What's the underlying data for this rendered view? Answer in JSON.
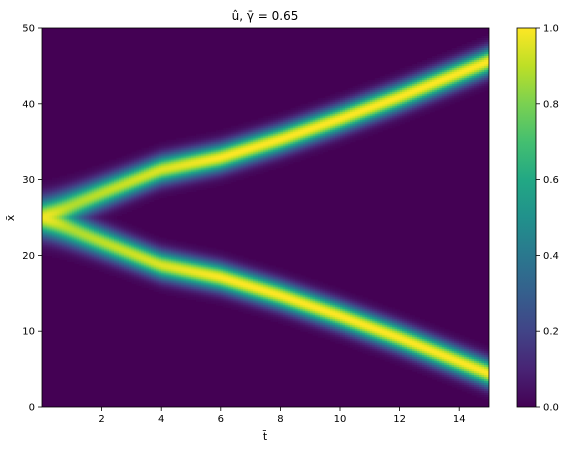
{
  "chart_data": {
    "type": "heatmap",
    "title": "û, γ̄ = 0.65",
    "xlabel": "t̄",
    "ylabel": "x̄",
    "xlim": [
      0,
      15
    ],
    "ylim": [
      0,
      50
    ],
    "xticks": [
      2,
      4,
      6,
      8,
      10,
      12,
      14
    ],
    "yticks": [
      0,
      10,
      20,
      30,
      40,
      50
    ],
    "colorbar": {
      "range": [
        0.0,
        1.0
      ],
      "ticks": [
        "0.0",
        "0.2",
        "0.4",
        "0.6",
        "0.8",
        "1.0"
      ],
      "colormap": "viridis"
    },
    "field": {
      "description_of_values": "two Gaussian pulses splitting from x̄=25 at t̄≈0",
      "split_center": 25,
      "branches": [
        {
          "name": "upper",
          "x_at_t": [
            [
              0,
              25
            ],
            [
              2,
              28.2
            ],
            [
              4,
              31.3
            ],
            [
              6,
              32.9
            ],
            [
              8,
              35.3
            ],
            [
              10,
              38.0
            ],
            [
              12,
              40.9
            ],
            [
              15,
              45.6
            ]
          ]
        },
        {
          "name": "lower",
          "x_at_t": [
            [
              0,
              25
            ],
            [
              2,
              21.8
            ],
            [
              4,
              18.7
            ],
            [
              6,
              17.1
            ],
            [
              8,
              14.7
            ],
            [
              10,
              12.0
            ],
            [
              12,
              9.1
            ],
            [
              15,
              4.4
            ]
          ]
        }
      ],
      "peak_value_early": 0.85,
      "peak_value_late": 1.0,
      "half_width": 1.2
    }
  }
}
